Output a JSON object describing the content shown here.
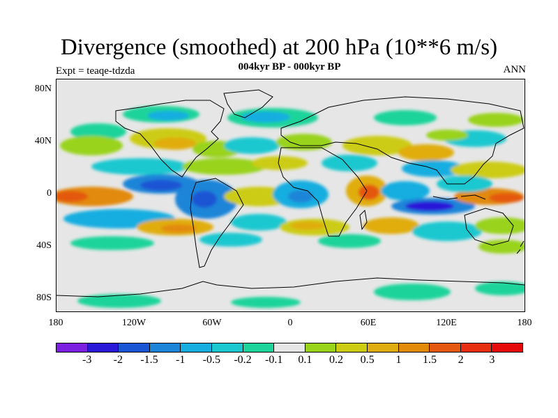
{
  "header": {
    "title": "Divergence (smoothed) at 200 hPa (10**6 m/s)",
    "subtitle": "004kyr BP - 000kyr BP",
    "left_label": "Expt = teaqe-tdzda",
    "right_label": "ANN"
  },
  "map": {
    "projection": "cylindrical equidistant",
    "lon_range": [
      -180,
      180
    ],
    "lat_range": [
      -90,
      90
    ],
    "lat_ticks": [
      "80N",
      "40N",
      "0",
      "40S",
      "80S"
    ],
    "lon_ticks": [
      "180",
      "120W",
      "60W",
      "0",
      "60E",
      "120E",
      "180"
    ],
    "background_color": "#e6e6e6"
  },
  "colorbar": {
    "labels": [
      "-3",
      "-2",
      "-1.5",
      "-1",
      "-0.5",
      "-0.2",
      "-0.1",
      "0.1",
      "0.2",
      "0.5",
      "1",
      "1.5",
      "2",
      "3"
    ],
    "colors": [
      "#7b1fe0",
      "#2a18d8",
      "#1a55d4",
      "#1d85d8",
      "#16aee0",
      "#1cc8d0",
      "#1dd49a",
      "#e6e6e6",
      "#99d31a",
      "#cccc12",
      "#e0ad10",
      "#e28a0a",
      "#e45810",
      "#e82e10",
      "#e60a0a"
    ]
  }
}
